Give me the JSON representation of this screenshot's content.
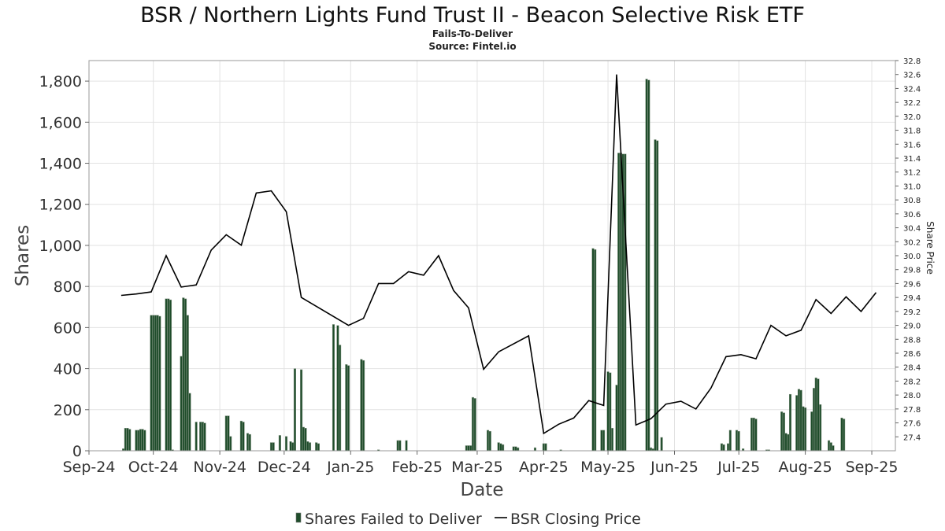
{
  "chart_data": {
    "type": "bar+line",
    "title": "BSR / Northern Lights Fund Trust II - Beacon Selective Risk ETF",
    "subtitle": "Fails-To-Deliver",
    "source": "Source: Fintel.io",
    "xlabel": "Date",
    "ylabel": "Shares",
    "y2label": "Share Price",
    "ylim": [
      0,
      1900
    ],
    "y2lim": [
      27.2,
      32.8
    ],
    "yticks": [
      0,
      200,
      400,
      600,
      800,
      1000,
      1200,
      1400,
      1600,
      1800
    ],
    "ytick_labels": [
      "0",
      "200",
      "400",
      "600",
      "800",
      "1,000",
      "1,200",
      "1,400",
      "1,600",
      "1,800"
    ],
    "y2ticks": [
      27.4,
      27.6,
      27.8,
      28.0,
      28.2,
      28.4,
      28.6,
      28.8,
      29.0,
      29.2,
      29.4,
      29.6,
      29.8,
      30.0,
      30.2,
      30.4,
      30.6,
      30.8,
      31.0,
      31.2,
      31.4,
      31.6,
      31.8,
      32.0,
      32.2,
      32.4,
      32.6,
      32.8
    ],
    "xrange": [
      "2024-09-01",
      "2025-09-12"
    ],
    "xticks": [
      {
        "date": "2024-09-01",
        "label": "Sep-24"
      },
      {
        "date": "2024-10-01",
        "label": "Oct-24"
      },
      {
        "date": "2024-11-01",
        "label": "Nov-24"
      },
      {
        "date": "2024-12-01",
        "label": "Dec-24"
      },
      {
        "date": "2025-01-01",
        "label": "Jan-25"
      },
      {
        "date": "2025-02-01",
        "label": "Feb-25"
      },
      {
        "date": "2025-03-01",
        "label": "Mar-25"
      },
      {
        "date": "2025-04-01",
        "label": "Apr-25"
      },
      {
        "date": "2025-05-01",
        "label": "May-25"
      },
      {
        "date": "2025-06-01",
        "label": "Jun-25"
      },
      {
        "date": "2025-07-01",
        "label": "Jul-25"
      },
      {
        "date": "2025-08-01",
        "label": "Aug-25"
      },
      {
        "date": "2025-09-01",
        "label": "Sep-25"
      }
    ],
    "grid": true,
    "legend_position": "bottom-center",
    "series": [
      {
        "name": "Shares Failed to Deliver",
        "kind": "bar",
        "color": "#1f4d2b",
        "points": [
          {
            "date": "2024-09-17",
            "value": 10
          },
          {
            "date": "2024-09-18",
            "value": 110
          },
          {
            "date": "2024-09-19",
            "value": 110
          },
          {
            "date": "2024-09-20",
            "value": 105
          },
          {
            "date": "2024-09-23",
            "value": 100
          },
          {
            "date": "2024-09-24",
            "value": 100
          },
          {
            "date": "2024-09-25",
            "value": 105
          },
          {
            "date": "2024-09-26",
            "value": 105
          },
          {
            "date": "2024-09-27",
            "value": 100
          },
          {
            "date": "2024-09-30",
            "value": 660
          },
          {
            "date": "2024-10-01",
            "value": 660
          },
          {
            "date": "2024-10-02",
            "value": 660
          },
          {
            "date": "2024-10-03",
            "value": 660
          },
          {
            "date": "2024-10-04",
            "value": 655
          },
          {
            "date": "2024-10-07",
            "value": 740
          },
          {
            "date": "2024-10-08",
            "value": 740
          },
          {
            "date": "2024-10-09",
            "value": 735
          },
          {
            "date": "2024-10-10",
            "value": 5
          },
          {
            "date": "2024-10-14",
            "value": 460
          },
          {
            "date": "2024-10-15",
            "value": 745
          },
          {
            "date": "2024-10-16",
            "value": 740
          },
          {
            "date": "2024-10-17",
            "value": 660
          },
          {
            "date": "2024-10-18",
            "value": 280
          },
          {
            "date": "2024-10-21",
            "value": 140
          },
          {
            "date": "2024-10-23",
            "value": 140
          },
          {
            "date": "2024-10-24",
            "value": 140
          },
          {
            "date": "2024-10-25",
            "value": 135
          },
          {
            "date": "2024-11-04",
            "value": 170
          },
          {
            "date": "2024-11-05",
            "value": 170
          },
          {
            "date": "2024-11-06",
            "value": 70
          },
          {
            "date": "2024-11-11",
            "value": 145
          },
          {
            "date": "2024-11-12",
            "value": 140
          },
          {
            "date": "2024-11-14",
            "value": 85
          },
          {
            "date": "2024-11-15",
            "value": 80
          },
          {
            "date": "2024-11-25",
            "value": 40
          },
          {
            "date": "2024-11-26",
            "value": 40
          },
          {
            "date": "2024-11-29",
            "value": 75
          },
          {
            "date": "2024-12-02",
            "value": 70
          },
          {
            "date": "2024-12-04",
            "value": 45
          },
          {
            "date": "2024-12-05",
            "value": 40
          },
          {
            "date": "2024-12-06",
            "value": 400
          },
          {
            "date": "2024-12-09",
            "value": 395
          },
          {
            "date": "2024-12-10",
            "value": 115
          },
          {
            "date": "2024-12-11",
            "value": 110
          },
          {
            "date": "2024-12-12",
            "value": 45
          },
          {
            "date": "2024-12-13",
            "value": 40
          },
          {
            "date": "2024-12-16",
            "value": 40
          },
          {
            "date": "2024-12-17",
            "value": 35
          },
          {
            "date": "2024-12-24",
            "value": 615
          },
          {
            "date": "2024-12-26",
            "value": 610
          },
          {
            "date": "2024-12-27",
            "value": 515
          },
          {
            "date": "2024-12-30",
            "value": 420
          },
          {
            "date": "2024-12-31",
            "value": 415
          },
          {
            "date": "2025-01-06",
            "value": 445
          },
          {
            "date": "2025-01-07",
            "value": 440
          },
          {
            "date": "2025-01-14",
            "value": 5
          },
          {
            "date": "2025-01-23",
            "value": 50
          },
          {
            "date": "2025-01-24",
            "value": 50
          },
          {
            "date": "2025-01-27",
            "value": 50
          },
          {
            "date": "2025-02-24",
            "value": 25
          },
          {
            "date": "2025-02-25",
            "value": 25
          },
          {
            "date": "2025-02-26",
            "value": 25
          },
          {
            "date": "2025-02-27",
            "value": 260
          },
          {
            "date": "2025-02-28",
            "value": 255
          },
          {
            "date": "2025-03-06",
            "value": 100
          },
          {
            "date": "2025-03-07",
            "value": 95
          },
          {
            "date": "2025-03-11",
            "value": 40
          },
          {
            "date": "2025-03-12",
            "value": 35
          },
          {
            "date": "2025-03-13",
            "value": 30
          },
          {
            "date": "2025-03-18",
            "value": 20
          },
          {
            "date": "2025-03-19",
            "value": 20
          },
          {
            "date": "2025-03-20",
            "value": 15
          },
          {
            "date": "2025-03-28",
            "value": 15
          },
          {
            "date": "2025-04-01",
            "value": 35
          },
          {
            "date": "2025-04-02",
            "value": 35
          },
          {
            "date": "2025-04-09",
            "value": 5
          },
          {
            "date": "2025-04-24",
            "value": 985
          },
          {
            "date": "2025-04-25",
            "value": 980
          },
          {
            "date": "2025-04-28",
            "value": 100
          },
          {
            "date": "2025-04-29",
            "value": 100
          },
          {
            "date": "2025-05-01",
            "value": 385
          },
          {
            "date": "2025-05-02",
            "value": 380
          },
          {
            "date": "2025-05-03",
            "value": 110
          },
          {
            "date": "2025-05-05",
            "value": 320
          },
          {
            "date": "2025-05-06",
            "value": 1450
          },
          {
            "date": "2025-05-07",
            "value": 1450
          },
          {
            "date": "2025-05-08",
            "value": 1445
          },
          {
            "date": "2025-05-09",
            "value": 1445
          },
          {
            "date": "2025-05-19",
            "value": 1810
          },
          {
            "date": "2025-05-20",
            "value": 1805
          },
          {
            "date": "2025-05-21",
            "value": 15
          },
          {
            "date": "2025-05-22",
            "value": 10
          },
          {
            "date": "2025-05-23",
            "value": 1515
          },
          {
            "date": "2025-05-24",
            "value": 1510
          },
          {
            "date": "2025-05-26",
            "value": 65
          },
          {
            "date": "2025-06-23",
            "value": 35
          },
          {
            "date": "2025-06-24",
            "value": 30
          },
          {
            "date": "2025-06-26",
            "value": 35
          },
          {
            "date": "2025-06-27",
            "value": 100
          },
          {
            "date": "2025-06-30",
            "value": 100
          },
          {
            "date": "2025-07-01",
            "value": 95
          },
          {
            "date": "2025-07-03",
            "value": 10
          },
          {
            "date": "2025-07-07",
            "value": 160
          },
          {
            "date": "2025-07-08",
            "value": 160
          },
          {
            "date": "2025-07-09",
            "value": 155
          },
          {
            "date": "2025-07-14",
            "value": 5
          },
          {
            "date": "2025-07-15",
            "value": 5
          },
          {
            "date": "2025-07-21",
            "value": 190
          },
          {
            "date": "2025-07-22",
            "value": 185
          },
          {
            "date": "2025-07-23",
            "value": 85
          },
          {
            "date": "2025-07-24",
            "value": 80
          },
          {
            "date": "2025-07-25",
            "value": 275
          },
          {
            "date": "2025-07-28",
            "value": 270
          },
          {
            "date": "2025-07-29",
            "value": 300
          },
          {
            "date": "2025-07-30",
            "value": 295
          },
          {
            "date": "2025-07-31",
            "value": 215
          },
          {
            "date": "2025-08-01",
            "value": 210
          },
          {
            "date": "2025-08-04",
            "value": 190
          },
          {
            "date": "2025-08-05",
            "value": 305
          },
          {
            "date": "2025-08-06",
            "value": 355
          },
          {
            "date": "2025-08-07",
            "value": 350
          },
          {
            "date": "2025-08-08",
            "value": 225
          },
          {
            "date": "2025-08-12",
            "value": 50
          },
          {
            "date": "2025-08-13",
            "value": 40
          },
          {
            "date": "2025-08-14",
            "value": 25
          },
          {
            "date": "2025-08-18",
            "value": 160
          },
          {
            "date": "2025-08-19",
            "value": 155
          }
        ]
      },
      {
        "name": "BSR Closing Price",
        "kind": "line",
        "axis": "right",
        "color": "#000000",
        "points": [
          {
            "date": "2024-09-16",
            "value": 29.43
          },
          {
            "date": "2024-09-23",
            "value": 29.45
          },
          {
            "date": "2024-09-30",
            "value": 29.48
          },
          {
            "date": "2024-10-07",
            "value": 30.0
          },
          {
            "date": "2024-10-14",
            "value": 29.55
          },
          {
            "date": "2024-10-21",
            "value": 29.58
          },
          {
            "date": "2024-10-28",
            "value": 30.08
          },
          {
            "date": "2024-11-04",
            "value": 30.3
          },
          {
            "date": "2024-11-11",
            "value": 30.15
          },
          {
            "date": "2024-11-18",
            "value": 30.9
          },
          {
            "date": "2024-11-25",
            "value": 30.93
          },
          {
            "date": "2024-12-02",
            "value": 30.63
          },
          {
            "date": "2024-12-09",
            "value": 29.4
          },
          {
            "date": "2024-12-31",
            "value": 29.0
          },
          {
            "date": "2025-01-07",
            "value": 29.1
          },
          {
            "date": "2025-01-14",
            "value": 29.6
          },
          {
            "date": "2025-01-21",
            "value": 29.6
          },
          {
            "date": "2025-01-28",
            "value": 29.77
          },
          {
            "date": "2025-02-04",
            "value": 29.72
          },
          {
            "date": "2025-02-11",
            "value": 30.0
          },
          {
            "date": "2025-02-18",
            "value": 29.5
          },
          {
            "date": "2025-02-25",
            "value": 29.25
          },
          {
            "date": "2025-03-04",
            "value": 28.37
          },
          {
            "date": "2025-03-11",
            "value": 28.62
          },
          {
            "date": "2025-03-25",
            "value": 28.85
          },
          {
            "date": "2025-04-01",
            "value": 27.45
          },
          {
            "date": "2025-04-08",
            "value": 27.58
          },
          {
            "date": "2025-04-15",
            "value": 27.67
          },
          {
            "date": "2025-04-22",
            "value": 27.92
          },
          {
            "date": "2025-04-29",
            "value": 27.85
          },
          {
            "date": "2025-05-05",
            "value": 32.6
          },
          {
            "date": "2025-05-14",
            "value": 27.57
          },
          {
            "date": "2025-05-21",
            "value": 27.66
          },
          {
            "date": "2025-05-28",
            "value": 27.87
          },
          {
            "date": "2025-06-04",
            "value": 27.91
          },
          {
            "date": "2025-06-11",
            "value": 27.8
          },
          {
            "date": "2025-06-18",
            "value": 28.1
          },
          {
            "date": "2025-06-25",
            "value": 28.55
          },
          {
            "date": "2025-07-02",
            "value": 28.58
          },
          {
            "date": "2025-07-09",
            "value": 28.52
          },
          {
            "date": "2025-07-16",
            "value": 29.0
          },
          {
            "date": "2025-07-23",
            "value": 28.85
          },
          {
            "date": "2025-07-30",
            "value": 28.93
          },
          {
            "date": "2025-08-06",
            "value": 29.37
          },
          {
            "date": "2025-08-13",
            "value": 29.17
          },
          {
            "date": "2025-08-20",
            "value": 29.41
          },
          {
            "date": "2025-08-27",
            "value": 29.2
          },
          {
            "date": "2025-09-03",
            "value": 29.47
          }
        ]
      }
    ]
  }
}
